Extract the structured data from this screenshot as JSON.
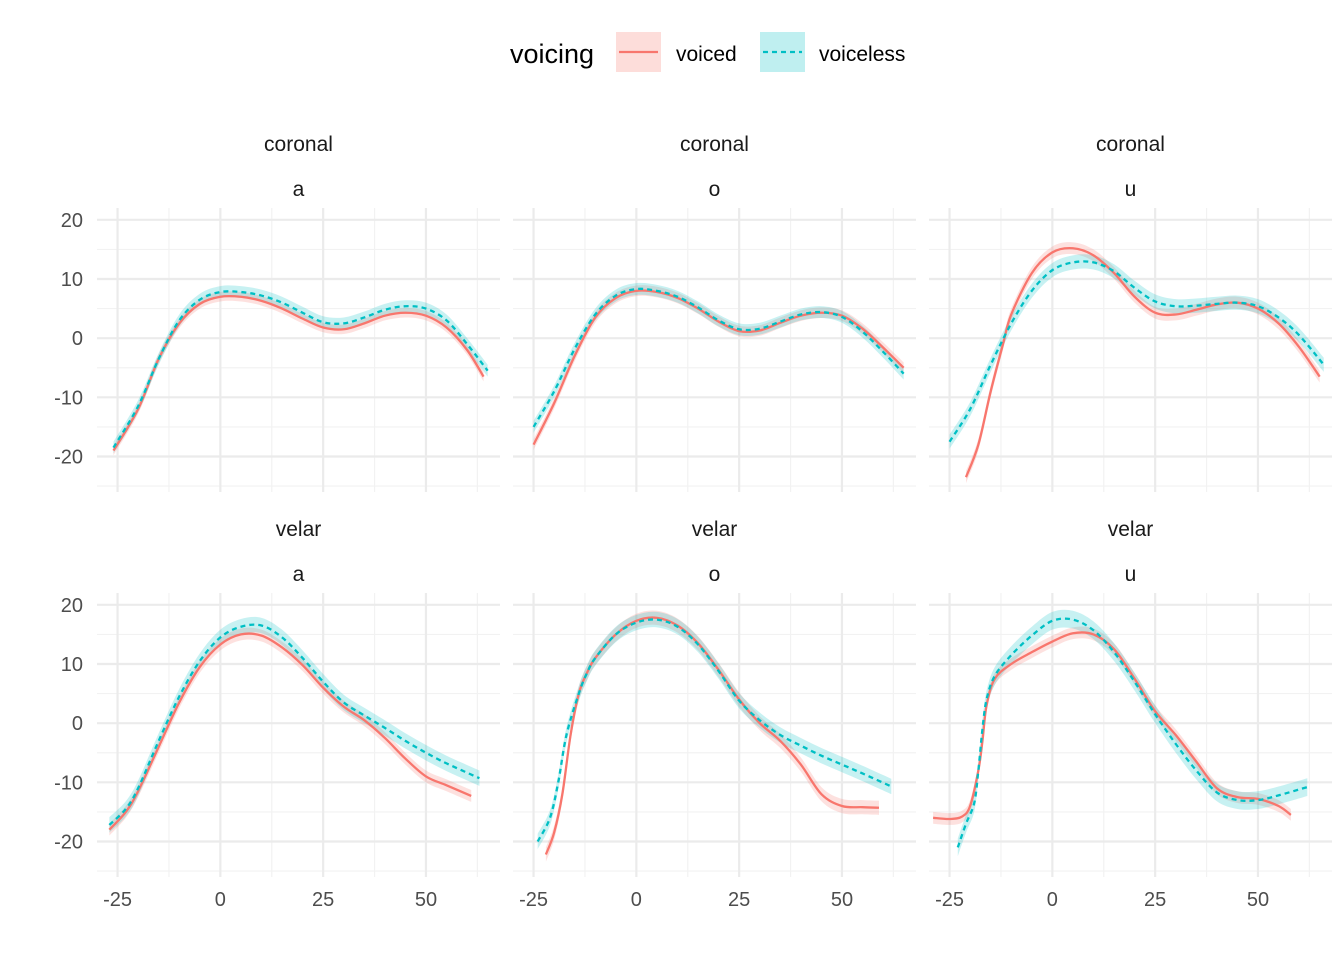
{
  "chart_data": {
    "type": "line",
    "legend": {
      "title": "voicing",
      "position": "top",
      "entries": [
        {
          "name": "voiced",
          "color": "#F8766D",
          "linetype": "solid"
        },
        {
          "name": "voiceless",
          "color": "#00BFC4",
          "linetype": "dashed"
        }
      ]
    },
    "grid": true,
    "xlim": [
      -30,
      68
    ],
    "ylim": [
      -26,
      22
    ],
    "x_ticks": [
      -25,
      0,
      25,
      50
    ],
    "x_tick_labels": [
      "-25",
      "0",
      "25",
      "50"
    ],
    "y_ticks": [
      20,
      10,
      0,
      -10,
      -20
    ],
    "y_tick_labels": [
      "20",
      "10",
      "0",
      "-10",
      "-20"
    ],
    "panels": [
      {
        "place": "coronal",
        "vowel": "a",
        "series": [
          {
            "name": "voiced",
            "band": 0.8,
            "x": [
              -26,
              -20,
              -15,
              -10,
              -5,
              0,
              5,
              10,
              15,
              20,
              25,
              30,
              35,
              40,
              45,
              50,
              55,
              60,
              64
            ],
            "y": [
              -19,
              -12,
              -3.5,
              2.5,
              5.8,
              7,
              7,
              6.3,
              5,
              3.3,
              1.8,
              1.5,
              2.5,
              3.8,
              4.3,
              3.8,
              1.8,
              -2,
              -6.5
            ]
          },
          {
            "name": "voiceless",
            "band": 1.0,
            "x": [
              -26,
              -20,
              -15,
              -10,
              -5,
              0,
              5,
              10,
              15,
              20,
              25,
              30,
              35,
              40,
              45,
              50,
              55,
              60,
              65
            ],
            "y": [
              -18.5,
              -11.5,
              -3.5,
              3,
              6.5,
              7.8,
              7.8,
              7.2,
              6,
              4.3,
              2.7,
              2.5,
              3.5,
              4.8,
              5.4,
              5,
              3,
              -1,
              -5.5
            ]
          }
        ]
      },
      {
        "place": "coronal",
        "vowel": "o",
        "series": [
          {
            "name": "voiced",
            "band": 0.9,
            "x": [
              -25,
              -20,
              -15,
              -10,
              -5,
              0,
              5,
              10,
              15,
              20,
              25,
              30,
              35,
              40,
              45,
              50,
              55,
              60,
              65
            ],
            "y": [
              -18,
              -11,
              -3,
              3.5,
              6.8,
              8,
              7.8,
              6.8,
              5,
              2.8,
              1.2,
              1.3,
              2.6,
              3.8,
              4.3,
              3.8,
              1.6,
              -1.6,
              -5
            ]
          },
          {
            "name": "voiceless",
            "band": 1.0,
            "x": [
              -25,
              -20,
              -15,
              -10,
              -5,
              0,
              5,
              10,
              15,
              20,
              25,
              30,
              35,
              40,
              45,
              50,
              55,
              60,
              65
            ],
            "y": [
              -15,
              -9,
              -1.8,
              4,
              7.2,
              8.3,
              8,
              7,
              5.2,
              3,
              1.5,
              1.6,
              2.8,
              4,
              4.4,
              3.6,
              1.1,
              -2.3,
              -6
            ]
          }
        ]
      },
      {
        "place": "coronal",
        "vowel": "u",
        "series": [
          {
            "name": "voiced",
            "band": 1.0,
            "x": [
              -21,
              -18,
              -15,
              -12,
              -10,
              -5,
              0,
              5,
              10,
              15,
              20,
              25,
              30,
              35,
              40,
              45,
              50,
              55,
              60,
              65
            ],
            "y": [
              -23.5,
              -18,
              -9,
              -1,
              4,
              11,
              14.5,
              15.2,
              14,
              11,
              7,
              4.3,
              4,
              4.8,
              5.7,
              6,
              5,
              2.5,
              -1.5,
              -6.5
            ]
          },
          {
            "name": "voiceless",
            "band": 1.2,
            "x": [
              -25,
              -20,
              -15,
              -10,
              -5,
              0,
              5,
              10,
              15,
              20,
              25,
              30,
              35,
              40,
              45,
              50,
              55,
              60,
              66
            ],
            "y": [
              -17.5,
              -12,
              -4.5,
              2.5,
              8,
              11.5,
              12.8,
              12.8,
              11.3,
              8.5,
              6.2,
              5.4,
              5.5,
              5.8,
              6,
              5.4,
              3.5,
              0.5,
              -4.5
            ]
          }
        ]
      },
      {
        "place": "velar",
        "vowel": "a",
        "series": [
          {
            "name": "voiced",
            "band": 1.0,
            "x": [
              -27,
              -23,
              -20,
              -15,
              -10,
              -5,
              0,
              5,
              10,
              15,
              20,
              25,
              30,
              35,
              40,
              45,
              50,
              55,
              61
            ],
            "y": [
              -18,
              -15,
              -11.5,
              -4,
              3.5,
              9.5,
              13.3,
              15,
              14.8,
              12.8,
              9.8,
              6,
              2.8,
              0.5,
              -2.5,
              -6,
              -9,
              -10.5,
              -12.3
            ]
          },
          {
            "name": "voiceless",
            "band": 1.3,
            "x": [
              -27,
              -23,
              -20,
              -15,
              -10,
              -5,
              0,
              5,
              10,
              15,
              20,
              25,
              30,
              35,
              40,
              45,
              50,
              55,
              63
            ],
            "y": [
              -17.2,
              -14.5,
              -11,
              -3,
              4.5,
              10.5,
              14.5,
              16.3,
              16.5,
              14.5,
              11,
              7,
              3.5,
              1.3,
              -0.8,
              -3,
              -5,
              -6.8,
              -9.3
            ]
          }
        ]
      },
      {
        "place": "velar",
        "vowel": "o",
        "series": [
          {
            "name": "voiced",
            "band": 1.2,
            "x": [
              -22,
              -20,
              -18,
              -16,
              -14,
              -12,
              -10,
              -5,
              0,
              5,
              10,
              15,
              20,
              25,
              30,
              35,
              40,
              45,
              50,
              55,
              59
            ],
            "y": [
              -22.2,
              -18.5,
              -12,
              -2,
              5,
              8.5,
              11,
              15,
              17.3,
              17.8,
              16.5,
              13.5,
              9,
              4,
              0,
              -3,
              -7,
              -12,
              -14,
              -14.2,
              -14.3
            ]
          },
          {
            "name": "voiceless",
            "band": 1.3,
            "x": [
              -24,
              -21,
              -19,
              -17,
              -14,
              -12,
              -10,
              -5,
              0,
              5,
              10,
              15,
              20,
              25,
              30,
              35,
              40,
              45,
              50,
              55,
              62
            ],
            "y": [
              -20,
              -16,
              -10,
              -2,
              5,
              8.5,
              11,
              15,
              17,
              17.5,
              16.3,
              13.3,
              8.8,
              3.8,
              0.5,
              -2,
              -3.8,
              -5.5,
              -7,
              -8.5,
              -10.7
            ]
          }
        ]
      },
      {
        "place": "velar",
        "vowel": "u",
        "series": [
          {
            "name": "voiced",
            "band": 1.0,
            "x": [
              -29,
              -25,
              -22,
              -20,
              -18,
              -17,
              -16,
              -14,
              -10,
              -5,
              0,
              5,
              10,
              15,
              20,
              25,
              30,
              35,
              40,
              45,
              50,
              55,
              58
            ],
            "y": [
              -16,
              -16.2,
              -15.8,
              -14,
              -8,
              -3,
              3,
              7.5,
              10,
              12,
              13.8,
              15.2,
              15,
              12.5,
              7.5,
              2,
              -2,
              -6.5,
              -11,
              -12.5,
              -12.8,
              -14,
              -15.5
            ]
          },
          {
            "name": "voiceless",
            "band": 1.5,
            "x": [
              -23,
              -21,
              -19,
              -18,
              -17,
              -16,
              -14,
              -10,
              -5,
              0,
              5,
              10,
              15,
              20,
              25,
              30,
              35,
              40,
              45,
              50,
              55,
              62
            ],
            "y": [
              -21,
              -17,
              -13.5,
              -8,
              -1,
              4,
              8,
              11.5,
              14.8,
              17.3,
              17.5,
              15.7,
              12,
              7,
              1.5,
              -3.5,
              -8,
              -11.7,
              -13,
              -13,
              -12.2,
              -10.8
            ]
          }
        ]
      }
    ]
  }
}
